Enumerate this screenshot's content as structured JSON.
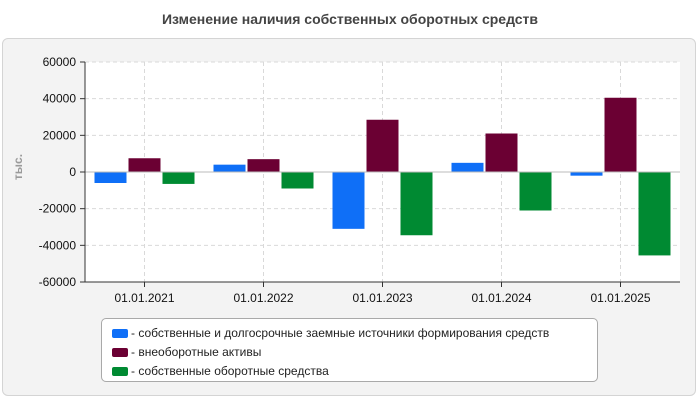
{
  "chart_data": {
    "type": "bar",
    "title": "Изменение наличия собственных оборотных средств",
    "ylabel": "тыс.",
    "xlabel": "",
    "categories": [
      "01.01.2021",
      "01.01.2022",
      "01.01.2023",
      "01.01.2024",
      "01.01.2025"
    ],
    "series": [
      {
        "name": "собственные и долгосрочные заемные источники формирования средств",
        "color": "#0f6ff7",
        "values": [
          -6000,
          4000,
          -31000,
          5000,
          -2000
        ]
      },
      {
        "name": "внеоборотные активы",
        "color": "#6b0033",
        "values": [
          7500,
          7000,
          28500,
          21000,
          40500
        ]
      },
      {
        "name": "собственные оборотные средства",
        "color": "#008a32",
        "values": [
          -6500,
          -9000,
          -34500,
          -21000,
          -45500
        ]
      }
    ],
    "ylim": [
      -60000,
      60000
    ],
    "yticks": [
      60000,
      40000,
      20000,
      0,
      -20000,
      -40000,
      -60000
    ],
    "legend_prefix": "- ",
    "legend_position": "bottom",
    "grid": true
  }
}
